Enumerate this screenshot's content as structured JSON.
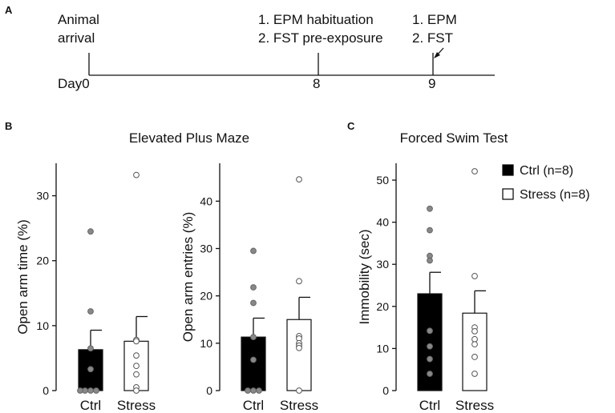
{
  "panels": {
    "a": "A",
    "b": "B",
    "c": "C"
  },
  "timeline": {
    "day0_label": "Day0",
    "arrival_line1": "Animal",
    "arrival_line2": "arrival",
    "day8_label": "8",
    "day8_line1": "1. EPM habituation",
    "day8_line2": "2. FST pre-exposure",
    "day9_label": "9",
    "day9_line1": "1. EPM",
    "day9_line2": "2. FST"
  },
  "titles": {
    "epm": "Elevated Plus Maze",
    "fst": "Forced Swim Test"
  },
  "legend": [
    {
      "label": "Ctrl (n=8)",
      "fill": "#000000"
    },
    {
      "label": "Stress (n=8)",
      "fill": "#ffffff"
    }
  ],
  "colors": {
    "ctrl_bar": "#000000",
    "stress_bar": "#ffffff",
    "ctrl_dot": "#888888",
    "stress_dot": "#ffffff"
  },
  "chart_data": [
    {
      "type": "bar",
      "ylabel": "Open arm time (%)",
      "categories": [
        "Ctrl",
        "Stress"
      ],
      "ylim": [
        0,
        35
      ],
      "yticks": [
        0,
        10,
        20,
        30
      ],
      "means": [
        6.3,
        7.6
      ],
      "sem": [
        3.0,
        3.8
      ],
      "points": [
        [
          24.5,
          12.2,
          6.5,
          3.3,
          0,
          0,
          0,
          0
        ],
        [
          33.2,
          7.8,
          7.6,
          5.4,
          3.8,
          2.5,
          0.5,
          0
        ]
      ]
    },
    {
      "type": "bar",
      "ylabel": "Open arm entries (%)",
      "categories": [
        "Ctrl",
        "Stress"
      ],
      "ylim": [
        0,
        48
      ],
      "yticks": [
        0,
        10,
        20,
        30,
        40
      ],
      "means": [
        11.3,
        15.0
      ],
      "sem": [
        4.0,
        4.7
      ],
      "points": [
        [
          29.5,
          21.8,
          18.5,
          11.3,
          6.5,
          0,
          0,
          0
        ],
        [
          44.6,
          23.1,
          11.5,
          11.0,
          10.0,
          9.5,
          9.0,
          0
        ]
      ]
    },
    {
      "type": "bar",
      "ylabel": "Immobility (sec)",
      "categories": [
        "Ctrl",
        "Stress"
      ],
      "ylim": [
        0,
        54
      ],
      "yticks": [
        0,
        10,
        20,
        30,
        40,
        50
      ],
      "means": [
        23.0,
        18.4
      ],
      "sem": [
        5.1,
        5.3
      ],
      "points": [
        [
          43.2,
          38.1,
          32.0,
          30.9,
          14.2,
          10.5,
          7.5,
          4.0
        ],
        [
          52.1,
          27.2,
          15.0,
          14.1,
          12.2,
          11.0,
          8.0,
          4.0
        ]
      ]
    }
  ]
}
